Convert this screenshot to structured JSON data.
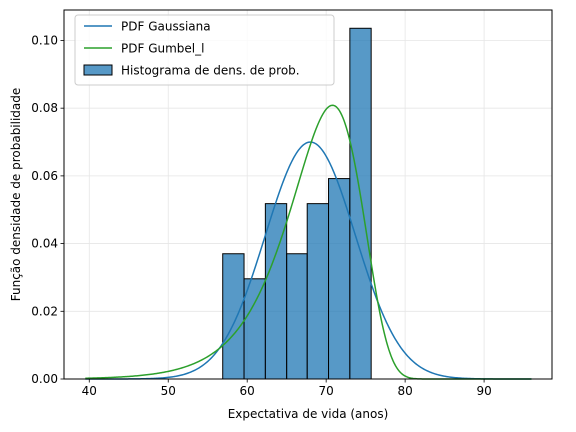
{
  "chart_data": {
    "type": "histogram",
    "title": "",
    "xlabel": "Expectativa de vida (anos)",
    "ylabel": "Função densidade de probabilidade",
    "xlim": [
      36.8,
      98.6
    ],
    "ylim": [
      0.0,
      0.109
    ],
    "x_ticks": [
      40,
      50,
      60,
      70,
      80,
      90
    ],
    "y_ticks": [
      0.0,
      0.02,
      0.04,
      0.06,
      0.08,
      0.1
    ],
    "y_tick_labels": [
      "0.00",
      "0.02",
      "0.04",
      "0.06",
      "0.08",
      "0.10"
    ],
    "grid": true,
    "legend_position": "top-left",
    "histogram": {
      "name": "Histograma de dens. de prob.",
      "color": "#1f77b4",
      "edges": [
        56.9,
        59.6,
        62.3,
        65.0,
        67.6,
        70.3,
        73.0,
        75.7
      ],
      "densities": [
        0.037,
        0.0296,
        0.0518,
        0.037,
        0.0518,
        0.0592,
        0.1036
      ]
    },
    "series": [
      {
        "name": "PDF Gaussiana",
        "color": "#1f77b4",
        "kind": "normal",
        "mu": 68.0,
        "sigma": 5.7,
        "x_range": [
          39.5,
          96.0
        ]
      },
      {
        "name": "PDF Gumbel_l",
        "color": "#2ca02c",
        "kind": "gumbel_l",
        "mu": 70.8,
        "beta": 4.55,
        "x_range": [
          39.5,
          96.0
        ]
      }
    ]
  }
}
